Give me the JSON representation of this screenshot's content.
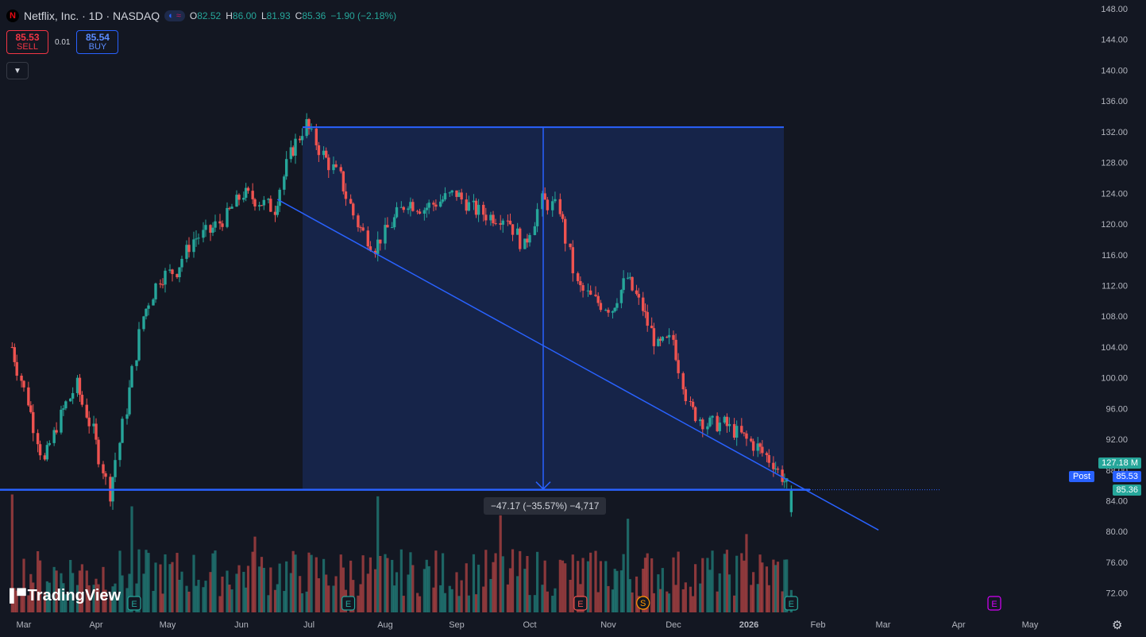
{
  "legend": {
    "logo": "N",
    "symbol": "Netflix, Inc. · 1D · NASDAQ",
    "open_label": "O",
    "open": "82.52",
    "high_label": "H",
    "high": "86.00",
    "low_label": "L",
    "low": "81.93",
    "close_label": "C",
    "close": "85.36",
    "change": "−1.90 (−2.18%)"
  },
  "trade": {
    "sell_price": "85.53",
    "sell_label": "SELL",
    "spread": "0.01",
    "buy_price": "85.54",
    "buy_label": "BUY"
  },
  "measure_label": "−47.17 (−35.57%) −4,717",
  "price_tags": {
    "volume": "127.18 M",
    "post_label": "Post",
    "post_price": "85.53",
    "last_price": "85.36"
  },
  "brand": "TradingView",
  "icons": {
    "settings": "gear-icon",
    "collapse": "chevron-down-icon",
    "earnings": "E",
    "split": "S"
  },
  "colors": {
    "up": "#26a69a",
    "down": "#ef5350",
    "drawing": "#2962ff",
    "background": "#131722"
  },
  "chart_data": {
    "type": "candlestick",
    "symbol": "NFLX",
    "interval": "1D",
    "ylim": [
      70,
      148
    ],
    "y_ticks": [
      "148.00",
      "144.00",
      "140.00",
      "136.00",
      "132.00",
      "128.00",
      "124.00",
      "120.00",
      "116.00",
      "112.00",
      "108.00",
      "104.00",
      "100.00",
      "96.00",
      "92.00",
      "88.00",
      "84.00",
      "80.00",
      "76.00",
      "72.00"
    ],
    "x_ticks": [
      "Mar",
      "Apr",
      "May",
      "Jun",
      "Jul",
      "Aug",
      "Sep",
      "Oct",
      "Nov",
      "Dec",
      "2026",
      "Feb",
      "Mar",
      "Apr",
      "May"
    ],
    "close_path": [
      [
        "2025-02-24",
        104
      ],
      [
        "2025-03-03",
        97
      ],
      [
        "2025-03-10",
        89
      ],
      [
        "2025-03-17",
        95
      ],
      [
        "2025-03-24",
        99
      ],
      [
        "2025-03-31",
        93
      ],
      [
        "2025-04-07",
        85
      ],
      [
        "2025-04-14",
        96
      ],
      [
        "2025-04-21",
        108
      ],
      [
        "2025-04-28",
        113
      ],
      [
        "2025-05-05",
        114
      ],
      [
        "2025-05-12",
        118
      ],
      [
        "2025-05-19",
        119
      ],
      [
        "2025-05-26",
        121
      ],
      [
        "2025-06-02",
        124
      ],
      [
        "2025-06-09",
        123
      ],
      [
        "2025-06-16",
        122
      ],
      [
        "2025-06-23",
        129
      ],
      [
        "2025-06-30",
        133
      ],
      [
        "2025-07-07",
        129
      ],
      [
        "2025-07-14",
        126
      ],
      [
        "2025-07-21",
        120
      ],
      [
        "2025-07-28",
        117
      ],
      [
        "2025-08-04",
        120
      ],
      [
        "2025-08-11",
        123
      ],
      [
        "2025-08-18",
        122
      ],
      [
        "2025-08-25",
        123
      ],
      [
        "2025-09-01",
        124
      ],
      [
        "2025-09-08",
        122
      ],
      [
        "2025-09-15",
        121
      ],
      [
        "2025-09-22",
        121
      ],
      [
        "2025-09-29",
        117
      ],
      [
        "2025-10-06",
        123
      ],
      [
        "2025-10-13",
        122
      ],
      [
        "2025-10-20",
        112
      ],
      [
        "2025-10-27",
        110
      ],
      [
        "2025-11-03",
        109
      ],
      [
        "2025-11-10",
        113
      ],
      [
        "2025-11-17",
        109
      ],
      [
        "2025-11-24",
        104
      ],
      [
        "2025-12-01",
        105
      ],
      [
        "2025-12-08",
        96
      ],
      [
        "2025-12-15",
        94
      ],
      [
        "2025-12-22",
        94
      ],
      [
        "2026-01-05",
        91
      ],
      [
        "2026-01-12",
        89
      ],
      [
        "2026-01-20",
        85.36
      ]
    ],
    "earnings_dates": [
      "2025-04-17",
      "2025-07-17",
      "2025-10-21",
      "2026-01-20",
      "2026-04-16"
    ],
    "split_date": "2025-11-17",
    "drawings": {
      "measure": {
        "from_price": 132.6,
        "to_price": 85.43,
        "change": -47.17,
        "change_pct": -35.57,
        "ticks": -4717
      },
      "horizontal_line": 85.43,
      "trend_line": [
        [
          "2025-06-17",
          123.2
        ],
        [
          "2026-02-27",
          80.2
        ]
      ]
    },
    "grid": false,
    "legend_position": "top-left"
  }
}
